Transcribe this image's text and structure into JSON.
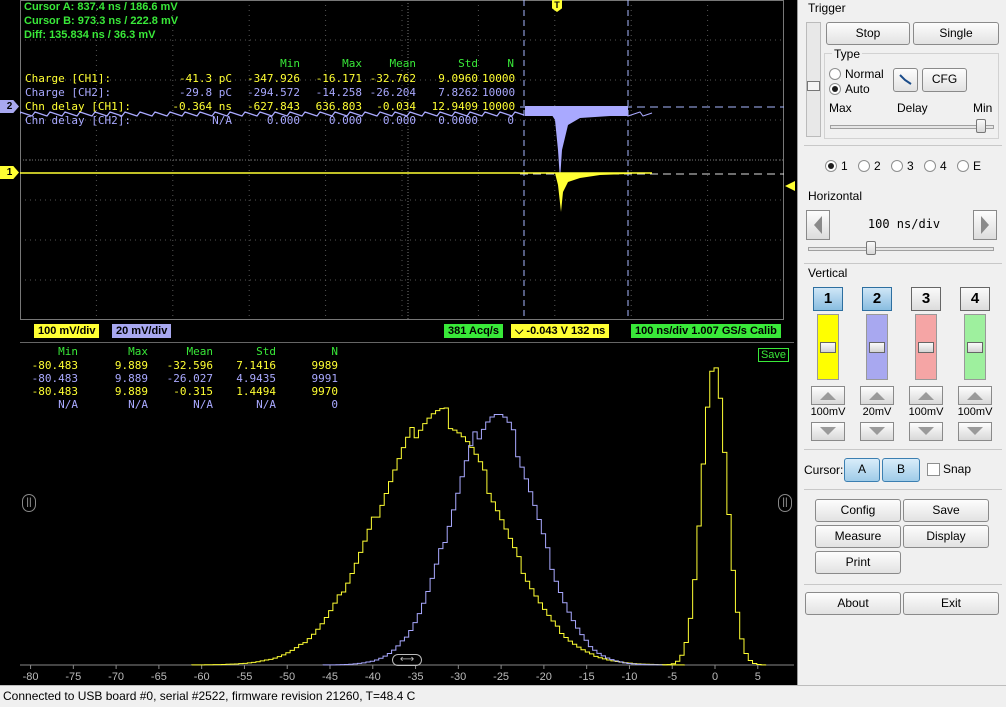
{
  "cursor": {
    "a_label": "Cursor A:",
    "a_value": "837.4 ns / 186.6 mV",
    "b_label": "Cursor B:",
    "b_value": "973.3 ns / 222.8 mV",
    "diff_label": "Diff:",
    "diff_value": "135.834 ns / 36.3 mV"
  },
  "measurements": {
    "headers": [
      "Min",
      "Max",
      "Mean",
      "Std",
      "N"
    ],
    "rows": [
      {
        "name": "Charge [CH1]:",
        "value": "-41.3 pC",
        "min": "-347.926",
        "max": "-16.171",
        "mean": "-32.762",
        "std": "9.0960",
        "n": "10000",
        "color": "#ffff33"
      },
      {
        "name": "Charge [CH2]:",
        "value": "-29.8 pC",
        "min": "-294.572",
        "max": "-14.258",
        "mean": "-26.204",
        "std": "7.8262",
        "n": "10000",
        "color": "#a9a9ff"
      },
      {
        "name": "Chn delay [CH1]:",
        "value": "-0.364 ns",
        "min": "-627.843",
        "max": "636.803",
        "mean": "-0.034",
        "std": "12.9409",
        "n": "10000",
        "color": "#ffff33"
      },
      {
        "name": "Chn delay [CH2]:",
        "value": "N/A",
        "min": "0.000",
        "max": "0.000",
        "mean": "0.000",
        "std": "0.0000",
        "n": "0",
        "color": "#a9a9ff"
      }
    ]
  },
  "markers": {
    "ch2": "2",
    "ch1": "1",
    "trigger": "T"
  },
  "strip": {
    "ch1_scale": "100 mV/div",
    "ch2_scale": "20 mV/div",
    "acq_rate": "381 Acq/s",
    "trigger_info": "-0.043 V 132 ns",
    "timebase": "100 ns/div  1.007 GS/s Calib"
  },
  "histogram": {
    "headers": [
      "Min",
      "Max",
      "Mean",
      "Std",
      "N"
    ],
    "rows": [
      {
        "min": "-80.483",
        "max": "9.889",
        "mean": "-32.596",
        "std": "7.1416",
        "n": "9989",
        "color": "#ffff33"
      },
      {
        "min": "-80.483",
        "max": "9.889",
        "mean": "-26.027",
        "std": "4.9435",
        "n": "9991",
        "color": "#a9a9ff"
      },
      {
        "min": "-80.483",
        "max": "9.889",
        "mean": "-0.315",
        "std": "1.4494",
        "n": "9970",
        "color": "#ffff33"
      },
      {
        "min": "N/A",
        "max": "N/A",
        "mean": "N/A",
        "std": "N/A",
        "n": "0",
        "color": "#a9a9ff"
      }
    ],
    "save_label": "Save",
    "x_ticks": [
      "-80",
      "-75",
      "-70",
      "-65",
      "-60",
      "-55",
      "-50",
      "-45",
      "-40",
      "-35",
      "-30",
      "-25",
      "-20",
      "-15",
      "-10",
      "-5",
      "0",
      "5"
    ]
  },
  "chart_data": {
    "type": "histogram",
    "x_range": [
      -81,
      9
    ],
    "series": [
      {
        "name": "Charge [CH1]",
        "color": "#ffff33",
        "center": -32.596,
        "std": 7.1416
      },
      {
        "name": "Charge [CH2]",
        "color": "#a9a9ff",
        "center": -26.027,
        "std": 4.9435
      },
      {
        "name": "Chn delay [CH1]",
        "color": "#ffff33",
        "center": -0.315,
        "std": 1.4494
      }
    ]
  },
  "trigger": {
    "title": "Trigger",
    "stop_label": "Stop",
    "single_label": "Single",
    "type_label": "Type",
    "normal_label": "Normal",
    "auto_label": "Auto",
    "cfg_label": "CFG",
    "max_label": "Max",
    "delay_label": "Delay",
    "min_label": "Min",
    "sources": [
      "1",
      "2",
      "3",
      "4",
      "E"
    ]
  },
  "horizontal": {
    "title": "Horizontal",
    "value": "100 ns/div"
  },
  "vertical": {
    "title": "Vertical",
    "channels": [
      {
        "num": "1",
        "scale": "100mV",
        "color": "#ffff00"
      },
      {
        "num": "2",
        "scale": "20mV",
        "color": "#a8a8f0"
      },
      {
        "num": "3",
        "scale": "100mV",
        "color": "#f5a5a5"
      },
      {
        "num": "4",
        "scale": "100mV",
        "color": "#9ef09e"
      }
    ]
  },
  "cursor_ctl": {
    "label": "Cursor:",
    "a": "A",
    "b": "B",
    "snap": "Snap"
  },
  "buttons": {
    "config": "Config",
    "save": "Save",
    "measure": "Measure",
    "display": "Display",
    "print": "Print",
    "about": "About",
    "exit": "Exit"
  },
  "status": "Connected to USB board #0, serial #2522, firmware revision 21260, T=48.4 C"
}
